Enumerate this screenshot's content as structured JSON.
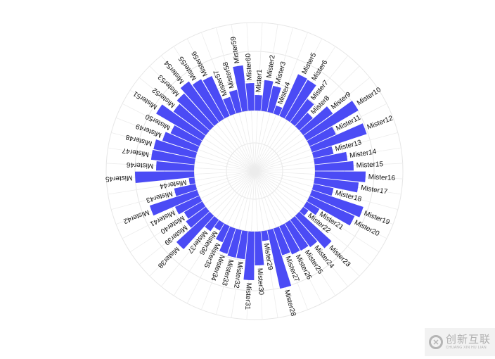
{
  "chart_data": {
    "type": "bar",
    "layout": "circular",
    "title": "",
    "xlabel": "",
    "ylabel": "",
    "bar_color": "#4B4BF5",
    "grid": true,
    "ylim": [
      -86,
      125
    ],
    "categories": [
      "Mister1",
      "Mister2",
      "Mister3",
      "Mister4",
      "Mister5",
      "Mister6",
      "Mister7",
      "Mister8",
      "Mister9",
      "Mister10",
      "Mister11",
      "Mister12",
      "Mister13",
      "Mister14",
      "Mister15",
      "Mister16",
      "Mister17",
      "Mister18",
      "Mister19",
      "Mister20",
      "Mister21",
      "Mister22",
      "Mister23",
      "Mister24",
      "Mister25",
      "Mister26",
      "Mister27",
      "Mister28",
      "Mister29",
      "Mister30",
      "Mister31",
      "Mister32",
      "Mister33",
      "Mister34",
      "Mister35",
      "Mister36",
      "Mister37",
      "Mister38",
      "Mister39",
      "Mister40",
      "Mister41",
      "Mister42",
      "Mister43",
      "Mister44",
      "Mister45",
      "Mister46",
      "Mister47",
      "Mister48",
      "Mister49",
      "Mister50",
      "Mister51",
      "Mister52",
      "Mister53",
      "Mister54",
      "Mister55",
      "Mister56",
      "Mister57",
      "Mister58",
      "Mister59",
      "Mister60"
    ],
    "values": [
      22,
      44,
      38,
      12,
      65,
      64,
      41,
      26,
      52,
      85,
      41,
      82,
      29,
      47,
      55,
      72,
      63,
      29,
      77,
      70,
      21,
      9,
      62,
      48,
      45,
      44,
      40,
      85,
      14,
      48,
      69,
      40,
      40,
      38,
      25,
      12,
      20,
      64,
      35,
      30,
      38,
      71,
      31,
      8,
      84,
      54,
      62,
      61,
      52,
      45,
      76,
      57,
      63,
      72,
      65,
      62,
      25,
      32,
      65,
      39
    ]
  },
  "watermark": {
    "cn": "创新互联",
    "en": "CHUANG XIN HU LIAN"
  }
}
